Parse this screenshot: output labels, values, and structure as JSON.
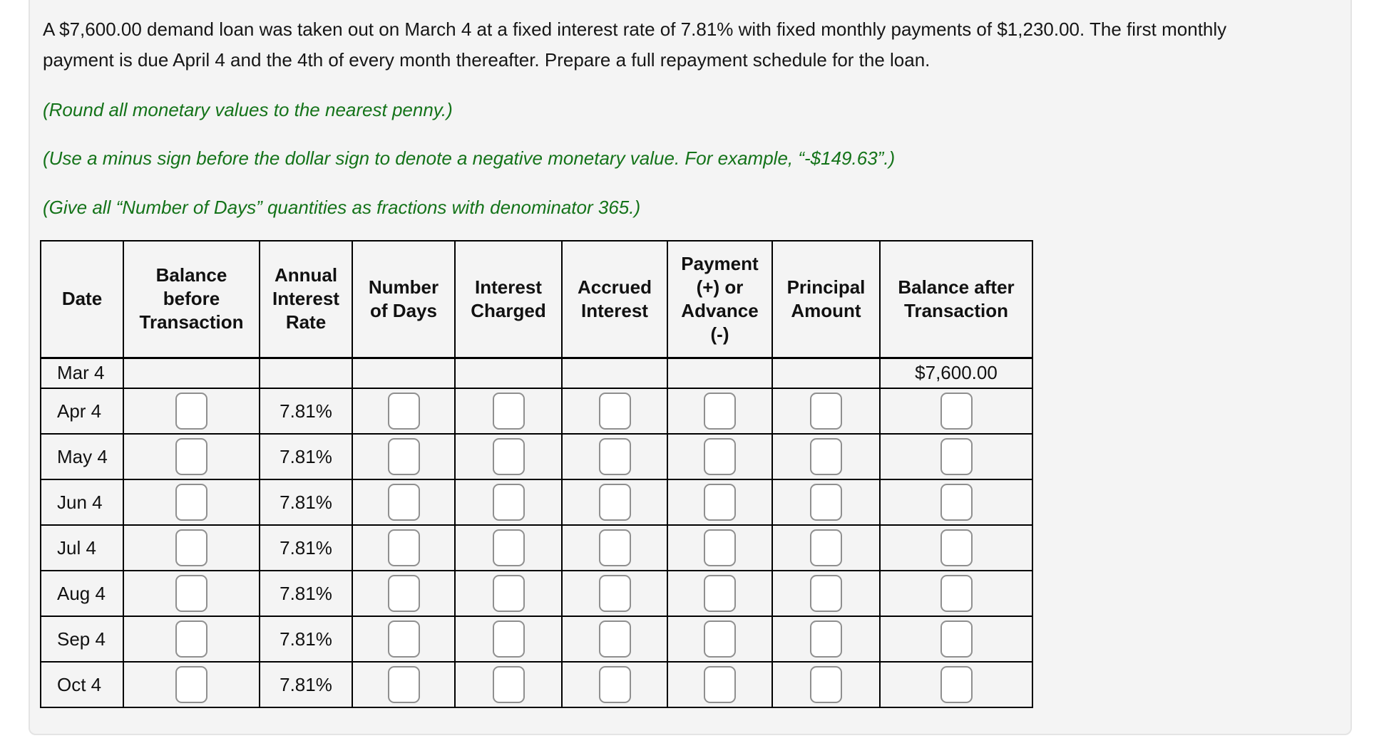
{
  "colors": {
    "panel_bg": "#f4f4f4",
    "panel_border": "#e4e4e4",
    "instruction_green": "#147319",
    "text": "#161616",
    "table_border": "#000000",
    "answer_box_border": "#8f8f8f"
  },
  "problem": {
    "line1": "A $7,600.00 demand loan was taken out on March 4 at a fixed interest rate of 7.81% with fixed monthly payments of $1,230.00. The first monthly",
    "line2": "payment is due April 4 and the 4th of every month thereafter. Prepare a full repayment schedule for the loan."
  },
  "instructions": {
    "round": "(Round all monetary values to the nearest penny.)",
    "minus_sign": "(Use a minus sign before the dollar sign to denote a negative monetary value. For example, “-$149.63”.)",
    "days_fraction": "(Give all “Number of Days” quantities as fractions with denominator 365.)"
  },
  "table": {
    "headers": [
      "Date",
      "Balance\nbefore\nTransaction",
      "Annual\nInterest\nRate",
      "Number\nof Days",
      "Interest\nCharged",
      "Accrued\nInterest",
      "Payment\n(+) or\nAdvance\n(-)",
      "Principal\nAmount",
      "Balance after\nTransaction"
    ],
    "initial_row": {
      "date": "Mar 4",
      "balance_after": "$7,600.00"
    },
    "input_rows": [
      {
        "date": "Apr 4",
        "rate": "7.81%"
      },
      {
        "date": "May 4",
        "rate": "7.81%"
      },
      {
        "date": "Jun 4",
        "rate": "7.81%"
      },
      {
        "date": "Jul 4",
        "rate": "7.81%"
      },
      {
        "date": "Aug 4",
        "rate": "7.81%"
      },
      {
        "date": "Sep 4",
        "rate": "7.81%"
      },
      {
        "date": "Oct 4",
        "rate": "7.81%"
      }
    ]
  }
}
